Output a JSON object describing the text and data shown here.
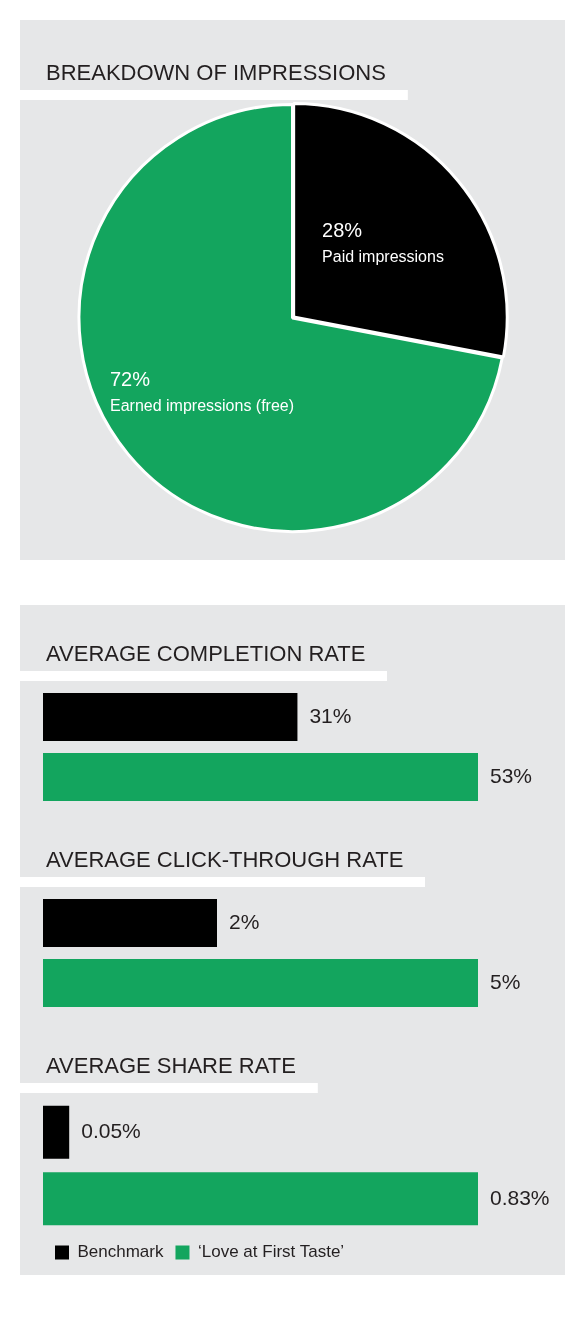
{
  "chart_data": [
    {
      "type": "pie",
      "title": "BREAKDOWN OF IMPRESSIONS",
      "categories": [
        "Paid impressions",
        "Earned impressions (free)"
      ],
      "values": [
        28,
        72
      ],
      "colors": [
        "#000000",
        "#13a55e"
      ],
      "value_labels": [
        "28%",
        "72%"
      ]
    },
    {
      "type": "bar",
      "title": "AVERAGE COMPLETION RATE",
      "orientation": "horizontal",
      "categories": [
        null
      ],
      "series": [
        {
          "color": "#000000",
          "values": [
            31
          ],
          "value_labels": [
            "31%"
          ]
        },
        {
          "color": "#13a55e",
          "values": [
            53
          ],
          "value_labels": [
            "53%"
          ]
        }
      ]
    },
    {
      "type": "bar",
      "title": "AVERAGE CLICK-THROUGH RATE",
      "orientation": "horizontal",
      "categories": [
        null
      ],
      "series": [
        {
          "color": "#000000",
          "values": [
            2
          ],
          "value_labels": [
            "2%"
          ]
        },
        {
          "color": "#13a55e",
          "values": [
            5
          ],
          "value_labels": [
            "5%"
          ]
        }
      ]
    },
    {
      "type": "bar",
      "title": "AVERAGE SHARE RATE",
      "orientation": "horizontal",
      "legend": "bottom",
      "categories": [
        null
      ],
      "series": [
        {
          "name": "Benchmark",
          "color": "#000000",
          "values": [
            0.05
          ],
          "value_labels": [
            "0.05%"
          ]
        },
        {
          "name": "‘Love at First Taste’",
          "color": "#13a55e",
          "values": [
            0.83
          ],
          "value_labels": [
            "0.83%"
          ]
        }
      ]
    }
  ]
}
